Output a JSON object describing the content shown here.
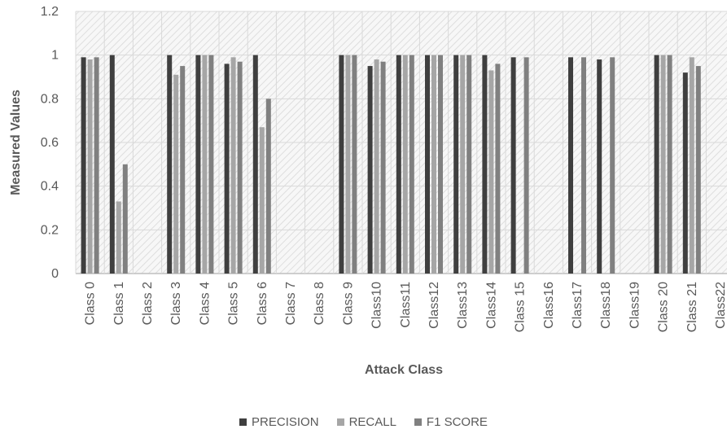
{
  "colors": {
    "PRECISION": "#3f3f3f",
    "RECALL": "#a6a6a6",
    "F1 SCORE": "#808080",
    "grid": "#d9d9d9",
    "plot_bg": "#f2f2f2"
  },
  "chart_data": {
    "type": "bar",
    "title": "",
    "xlabel": "Attack Class",
    "ylabel": "Measured Values",
    "ylim": [
      0,
      1.2
    ],
    "yticks": [
      "0",
      "0.2",
      "0.4",
      "0.6",
      "0.8",
      "1",
      "1.2"
    ],
    "categories": [
      "Class 0",
      "Class 1",
      "Class 2",
      "Class 3",
      "Class 4",
      "Class 5",
      "Class 6",
      "Class 7",
      "Class 8",
      "Class 9",
      "Class10",
      "Class11",
      "Class12",
      "Class13",
      "Class14",
      "Class 15",
      "Class16",
      "Class17",
      "Class18",
      "Class19",
      "Class 20",
      "Class 21",
      "Class22"
    ],
    "series": [
      {
        "name": "PRECISION",
        "values": [
          0.99,
          1.0,
          0,
          1.0,
          1.0,
          0.96,
          1.0,
          0,
          0,
          1.0,
          0.95,
          1.0,
          1.0,
          1.0,
          1.0,
          0.99,
          0,
          0.99,
          0.98,
          0,
          1.0,
          0.92,
          0
        ]
      },
      {
        "name": "RECALL",
        "values": [
          0.98,
          0.33,
          0,
          0.91,
          1.0,
          0.99,
          0.67,
          0,
          0,
          1.0,
          0.98,
          1.0,
          1.0,
          1.0,
          0.93,
          0,
          0,
          0,
          0,
          0,
          1.0,
          0.99,
          0
        ]
      },
      {
        "name": "F1 SCORE",
        "values": [
          0.99,
          0.5,
          0,
          0.95,
          1.0,
          0.97,
          0.8,
          0,
          0,
          1.0,
          0.97,
          1.0,
          1.0,
          1.0,
          0.96,
          0.99,
          0,
          0.99,
          0.99,
          0,
          1.0,
          0.95,
          0
        ]
      }
    ],
    "grid": true,
    "legend_position": "bottom"
  }
}
